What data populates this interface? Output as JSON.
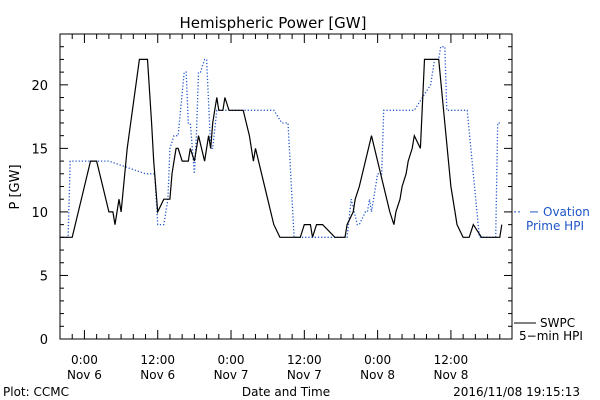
{
  "chart_data": {
    "type": "line",
    "title": "Hemispheric Power [GW]",
    "xlabel": "Date and Time",
    "ylabel": "P [GW]",
    "ylim": [
      0,
      24
    ],
    "yticks": [
      0,
      5,
      10,
      15,
      20
    ],
    "xlim": [
      "2016-11-05 20:00",
      "2016-11-08 22:00"
    ],
    "xticks": [
      {
        "time": "2016-11-06 00:00",
        "line1": "0:00",
        "line2": "Nov 6"
      },
      {
        "time": "2016-11-06 12:00",
        "line1": "12:00",
        "line2": "Nov 6"
      },
      {
        "time": "2016-11-07 00:00",
        "line1": "0:00",
        "line2": "Nov 7"
      },
      {
        "time": "2016-11-07 12:00",
        "line1": "12:00",
        "line2": "Nov 7"
      },
      {
        "time": "2016-11-08 00:00",
        "line1": "0:00",
        "line2": "Nov 8"
      },
      {
        "time": "2016-11-08 12:00",
        "line1": "12:00",
        "line2": "Nov 8"
      }
    ],
    "grid": false,
    "series": [
      {
        "name": "Ovation Prime HPI",
        "legend_lines": [
          "Ovation",
          "Prime HPI"
        ],
        "color": "#1f55c8",
        "style": "dotted",
        "x": [
          "2016-11-05 20:00",
          "2016-11-05 21:20",
          "2016-11-05 21:40",
          "2016-11-06 04:00",
          "2016-11-06 10:00",
          "2016-11-06 11:30",
          "2016-11-06 12:00",
          "2016-11-06 13:00",
          "2016-11-06 13:40",
          "2016-11-06 14:00",
          "2016-11-06 14:40",
          "2016-11-06 15:20",
          "2016-11-06 16:20",
          "2016-11-06 16:40",
          "2016-11-06 17:00",
          "2016-11-06 17:20",
          "2016-11-06 18:00",
          "2016-11-06 18:20",
          "2016-11-06 18:40",
          "2016-11-06 19:00",
          "2016-11-06 19:40",
          "2016-11-06 20:00",
          "2016-11-06 20:40",
          "2016-11-06 21:00",
          "2016-11-06 21:40",
          "2016-11-06 22:00",
          "2016-11-06 22:20",
          "2016-11-06 22:40",
          "2016-11-06 23:00",
          "2016-11-07 00:00",
          "2016-11-07 01:00",
          "2016-11-07 01:40",
          "2016-11-07 02:00",
          "2016-11-07 05:20",
          "2016-11-07 06:00",
          "2016-11-07 07:00",
          "2016-11-07 08:20",
          "2016-11-07 09:20",
          "2016-11-07 10:20",
          "2016-11-07 11:00",
          "2016-11-07 11:20",
          "2016-11-07 11:40",
          "2016-11-07 14:20",
          "2016-11-07 15:00",
          "2016-11-07 16:20",
          "2016-11-07 17:00",
          "2016-11-07 18:00",
          "2016-11-07 19:00",
          "2016-11-07 19:40",
          "2016-11-07 20:40",
          "2016-11-07 21:00",
          "2016-11-07 22:00",
          "2016-11-07 22:20",
          "2016-11-07 22:40",
          "2016-11-07 23:00",
          "2016-11-08 00:00",
          "2016-11-08 00:40",
          "2016-11-08 01:00",
          "2016-11-08 06:00",
          "2016-11-08 08:40",
          "2016-11-08 09:20",
          "2016-11-08 10:00",
          "2016-11-08 10:20",
          "2016-11-08 11:00",
          "2016-11-08 11:20",
          "2016-11-08 12:00",
          "2016-11-08 13:20",
          "2016-11-08 14:40",
          "2016-11-08 16:40",
          "2016-11-08 17:40",
          "2016-11-08 19:20",
          "2016-11-08 19:40",
          "2016-11-08 20:20"
        ],
        "y": [
          8,
          8,
          14,
          14,
          13,
          13,
          9,
          9,
          11,
          15,
          16,
          16,
          21,
          21,
          17,
          17,
          13,
          16,
          21,
          21,
          22,
          22,
          15,
          15,
          18,
          18,
          18,
          18,
          18,
          18,
          18,
          18,
          18,
          18,
          18,
          18,
          17,
          17,
          8,
          8,
          8,
          8,
          8,
          8,
          8,
          8,
          8,
          8,
          11,
          9,
          9,
          10,
          10,
          11,
          10,
          13,
          13,
          18,
          18,
          20,
          22,
          22,
          23,
          23,
          18,
          18,
          18,
          18,
          8,
          8,
          8,
          17,
          17
        ]
      },
      {
        "name": "SWPC 5-min HPI",
        "legend_lines": [
          "SWPC",
          "5−min HPI"
        ],
        "color": "#000000",
        "style": "solid",
        "x": [
          "2016-11-05 20:00",
          "2016-11-05 22:00",
          "2016-11-05 23:00",
          "2016-11-06 00:00",
          "2016-11-06 01:00",
          "2016-11-06 02:00",
          "2016-11-06 03:00",
          "2016-11-06 04:00",
          "2016-11-06 04:40",
          "2016-11-06 05:00",
          "2016-11-06 05:20",
          "2016-11-06 05:40",
          "2016-11-06 06:00",
          "2016-11-06 07:00",
          "2016-11-06 09:00",
          "2016-11-06 10:20",
          "2016-11-06 11:00",
          "2016-11-06 11:20",
          "2016-11-06 11:40",
          "2016-11-06 12:00",
          "2016-11-06 13:00",
          "2016-11-06 14:00",
          "2016-11-06 14:20",
          "2016-11-06 14:40",
          "2016-11-06 15:00",
          "2016-11-06 15:20",
          "2016-11-06 16:00",
          "2016-11-06 17:00",
          "2016-11-06 17:20",
          "2016-11-06 18:00",
          "2016-11-06 18:40",
          "2016-11-06 19:40",
          "2016-11-06 20:00",
          "2016-11-06 20:20",
          "2016-11-06 20:40",
          "2016-11-06 21:00",
          "2016-11-06 21:20",
          "2016-11-06 21:40",
          "2016-11-06 22:00",
          "2016-11-06 22:40",
          "2016-11-06 23:00",
          "2016-11-06 23:40",
          "2016-11-07 00:00",
          "2016-11-07 01:00",
          "2016-11-07 02:00",
          "2016-11-07 03:00",
          "2016-11-07 03:40",
          "2016-11-07 04:00",
          "2016-11-07 05:00",
          "2016-11-07 06:00",
          "2016-11-07 07:00",
          "2016-11-07 08:00",
          "2016-11-07 09:00",
          "2016-11-07 10:00",
          "2016-11-07 11:00",
          "2016-11-07 11:20",
          "2016-11-07 12:00",
          "2016-11-07 13:00",
          "2016-11-07 13:20",
          "2016-11-07 14:00",
          "2016-11-07 15:00",
          "2016-11-07 17:00",
          "2016-11-07 18:40",
          "2016-11-07 19:00",
          "2016-11-07 20:00",
          "2016-11-07 20:20",
          "2016-11-07 21:00",
          "2016-11-07 22:00",
          "2016-11-07 23:00",
          "2016-11-08 00:00",
          "2016-11-08 01:00",
          "2016-11-08 02:00",
          "2016-11-08 02:40",
          "2016-11-08 03:00",
          "2016-11-08 03:40",
          "2016-11-08 04:00",
          "2016-11-08 04:40",
          "2016-11-08 05:00",
          "2016-11-08 05:40",
          "2016-11-08 06:00",
          "2016-11-08 07:00",
          "2016-11-08 07:40",
          "2016-11-08 08:00",
          "2016-11-08 10:00",
          "2016-11-08 11:00",
          "2016-11-08 12:00",
          "2016-11-08 12:40",
          "2016-11-08 13:00",
          "2016-11-08 14:00",
          "2016-11-08 15:00",
          "2016-11-08 15:40",
          "2016-11-08 17:00",
          "2016-11-08 17:20",
          "2016-11-08 18:00",
          "2016-11-08 18:20",
          "2016-11-08 19:00",
          "2016-11-08 19:40",
          "2016-11-08 20:00",
          "2016-11-08 20:20"
        ],
        "y": [
          8,
          8,
          10,
          12,
          14,
          14,
          12,
          10,
          10,
          9,
          10,
          11,
          10,
          15,
          22,
          22,
          17,
          14,
          12,
          10,
          11,
          11,
          13,
          14,
          15,
          15,
          14,
          14,
          15,
          14,
          16,
          14,
          15,
          16,
          15,
          17,
          18,
          19,
          18,
          18,
          19,
          18,
          18,
          18,
          18,
          16,
          14,
          15,
          13,
          11,
          9,
          8,
          8,
          8,
          8,
          8,
          9,
          9,
          8,
          9,
          9,
          8,
          8,
          9,
          10,
          11,
          12,
          14,
          16,
          14,
          12,
          10,
          9,
          10,
          11,
          12,
          13,
          14,
          15,
          16,
          15,
          22,
          22,
          22,
          17,
          12,
          10,
          9,
          8,
          8,
          9,
          8,
          8,
          8,
          8,
          8,
          8,
          8,
          9
        ]
      }
    ],
    "footer_left": "Plot: CCMC",
    "footer_right": "2016/11/08 19:15:13"
  }
}
